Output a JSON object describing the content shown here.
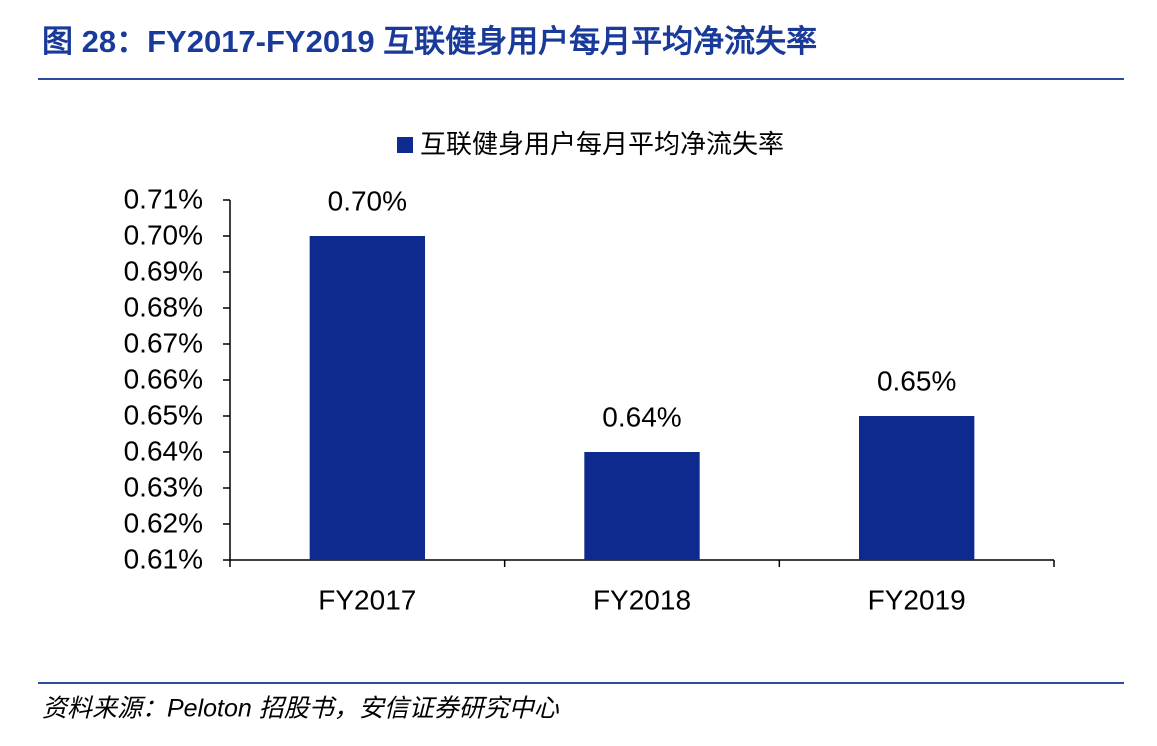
{
  "chart_data": {
    "type": "bar",
    "title": "图 28：FY2017-FY2019 互联健身用户每月平均净流失率",
    "source": "资料来源：Peloton 招股书，安信证券研究中心",
    "categories": [
      "FY2017",
      "FY2018",
      "FY2019"
    ],
    "series": [
      {
        "name": "互联健身用户每月平均净流失率",
        "color": "#0f2a8f",
        "values": [
          0.7,
          0.64,
          0.65
        ],
        "value_labels": [
          "0.70%",
          "0.64%",
          "0.65%"
        ]
      }
    ],
    "ylim": [
      0.61,
      0.71
    ],
    "yticks": [
      {
        "value": 0.61,
        "label": "0.61%"
      },
      {
        "value": 0.62,
        "label": "0.62%"
      },
      {
        "value": 0.63,
        "label": "0.63%"
      },
      {
        "value": 0.64,
        "label": "0.64%"
      },
      {
        "value": 0.65,
        "label": "0.65%"
      },
      {
        "value": 0.66,
        "label": "0.66%"
      },
      {
        "value": 0.67,
        "label": "0.67%"
      },
      {
        "value": 0.68,
        "label": "0.68%"
      },
      {
        "value": 0.69,
        "label": "0.69%"
      },
      {
        "value": 0.7,
        "label": "0.70%"
      },
      {
        "value": 0.71,
        "label": "0.71%"
      }
    ],
    "legend": "top"
  }
}
